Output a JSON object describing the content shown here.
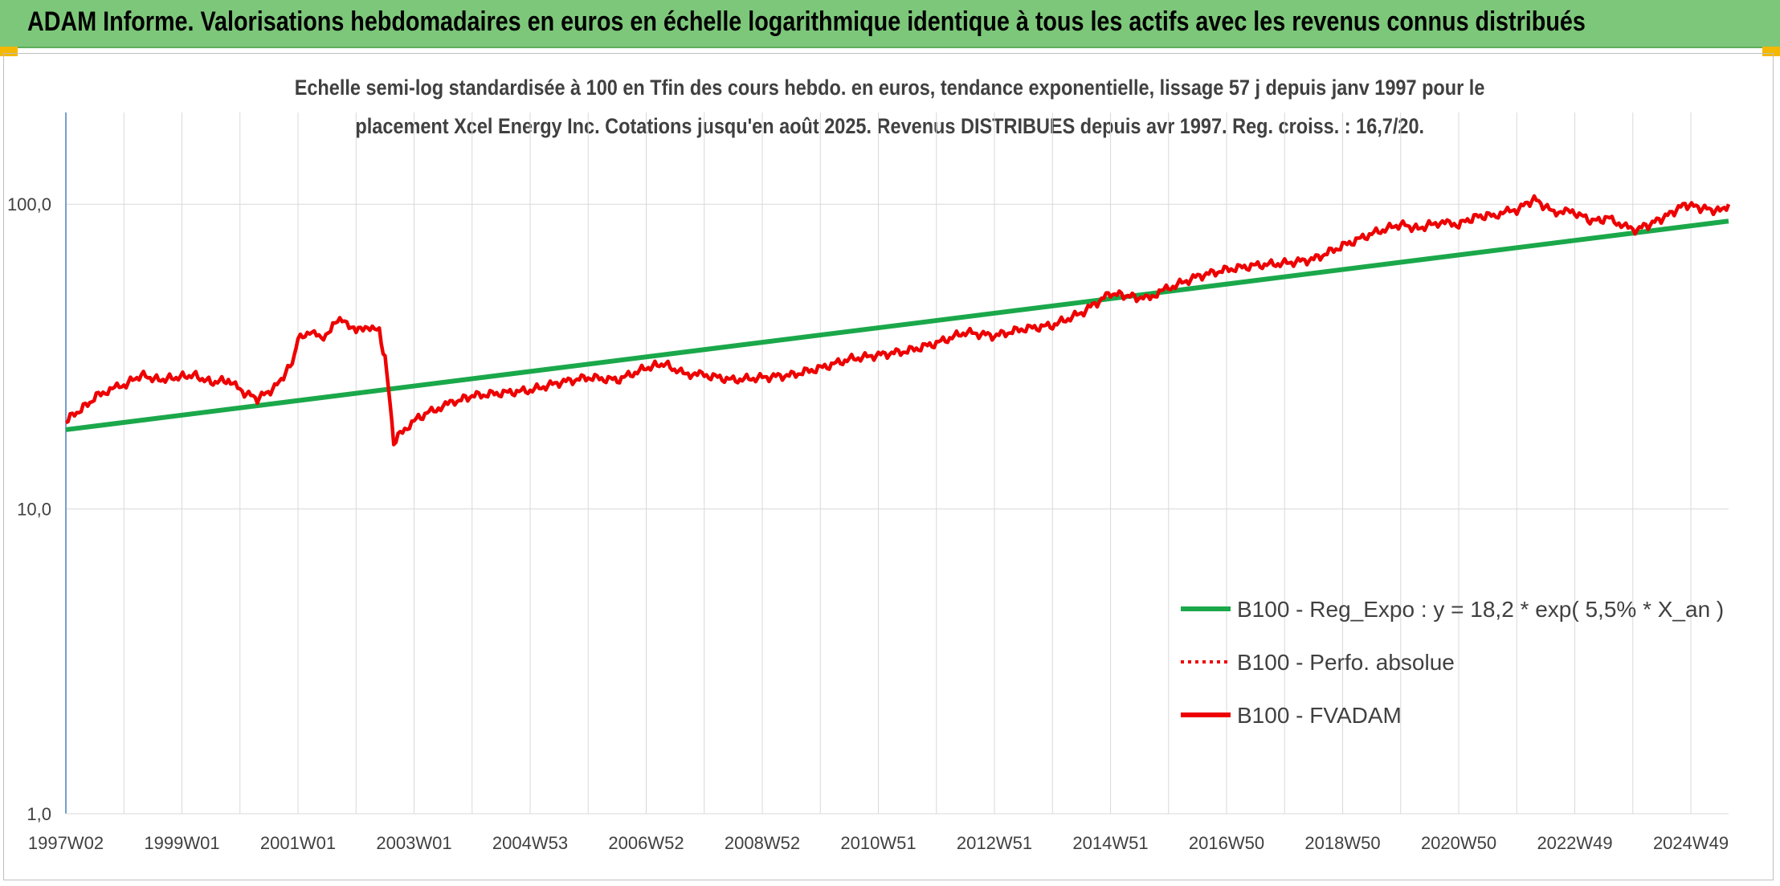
{
  "header": {
    "title": "ADAM Informe. Valorisations hebdomadaires en euros en échelle logarithmique identique à tous les actifs avec les revenus connus distribués"
  },
  "colors": {
    "header_bg": "#7dc77a",
    "accent_corner": "#f4b800",
    "trend": "#1aa84a",
    "price": "#ee0000"
  },
  "chart_data": {
    "type": "line",
    "subtitle_line1": "Echelle semi-log standardisée à 100 en Tfin des cours hebdo. en euros, tendance exponentielle, lissage 57 j depuis janv 1997 pour le",
    "subtitle_line2": "placement Xcel Energy Inc. Cotations jusqu'en août 2025. Revenus DISTRIBUES depuis avr 1997. Reg. croiss. : 16,7/20.",
    "y_scale": "log",
    "ylim": [
      1,
      200
    ],
    "y_ticks": [
      {
        "value": 1,
        "label": "1,0"
      },
      {
        "value": 10,
        "label": "10,0"
      },
      {
        "value": 100,
        "label": "100,0"
      }
    ],
    "xlim": [
      1997.0,
      2025.65
    ],
    "x_ticks": [
      {
        "value": 1997.0,
        "label": "1997W02"
      },
      {
        "value": 1999.0,
        "label": "1999W01"
      },
      {
        "value": 2001.0,
        "label": "2001W01"
      },
      {
        "value": 2003.0,
        "label": "2003W01"
      },
      {
        "value": 2005.0,
        "label": "2004W53"
      },
      {
        "value": 2007.0,
        "label": "2006W52"
      },
      {
        "value": 2009.0,
        "label": "2008W52"
      },
      {
        "value": 2011.0,
        "label": "2010W51"
      },
      {
        "value": 2013.0,
        "label": "2012W51"
      },
      {
        "value": 2015.0,
        "label": "2014W51"
      },
      {
        "value": 2017.0,
        "label": "2016W50"
      },
      {
        "value": 2019.0,
        "label": "2018W50"
      },
      {
        "value": 2021.0,
        "label": "2020W50"
      },
      {
        "value": 2023.0,
        "label": "2022W49"
      },
      {
        "value": 2025.0,
        "label": "2024W49"
      }
    ],
    "grid": "vertical and horizontal",
    "legend_position": "bottom-right",
    "series": [
      {
        "name": "B100 - Reg_Expo : y = 18,2 * exp( 5,5% *  X_an )",
        "style": "solid",
        "color": "#1aa84a",
        "x": [
          1997.0,
          2025.65
        ],
        "y": [
          18.2,
          88.0
        ]
      },
      {
        "name": "B100 - Perfo. absolue",
        "style": "dotted",
        "color": "#ee0000",
        "x": [],
        "y": []
      },
      {
        "name": "B100 - FVADAM",
        "style": "solid",
        "color": "#ee0000",
        "x": [
          1997.0,
          1997.3,
          1997.6,
          1998.0,
          1998.3,
          1998.6,
          1998.9,
          1999.2,
          1999.5,
          1999.8,
          2000.0,
          2000.3,
          2000.6,
          2000.9,
          2001.0,
          2001.2,
          2001.4,
          2001.6,
          2001.8,
          2002.0,
          2002.2,
          2002.4,
          2002.5,
          2002.55,
          2002.65,
          2002.8,
          2003.0,
          2003.3,
          2003.7,
          2004.0,
          2004.5,
          2005.0,
          2005.5,
          2006.0,
          2006.5,
          2007.0,
          2007.3,
          2007.6,
          2008.0,
          2008.5,
          2009.0,
          2009.5,
          2010.0,
          2010.5,
          2011.0,
          2011.5,
          2012.0,
          2012.5,
          2013.0,
          2013.5,
          2014.0,
          2014.5,
          2015.0,
          2015.3,
          2015.6,
          2016.0,
          2016.5,
          2017.0,
          2017.5,
          2018.0,
          2018.5,
          2019.0,
          2019.5,
          2020.0,
          2020.3,
          2020.6,
          2021.0,
          2021.3,
          2021.6,
          2022.0,
          2022.3,
          2022.6,
          2023.0,
          2023.3,
          2023.6,
          2024.0,
          2024.3,
          2024.6,
          2024.9,
          2025.2,
          2025.5,
          2025.65
        ],
        "y": [
          19.5,
          21.5,
          24.0,
          25.5,
          27.5,
          26.5,
          27.0,
          27.5,
          26.0,
          26.5,
          24.5,
          23.0,
          25.0,
          30.0,
          36.0,
          38.5,
          36.0,
          40.0,
          42.0,
          38.0,
          40.0,
          38.0,
          31.0,
          26.0,
          16.5,
          18.0,
          19.5,
          21.0,
          22.5,
          23.5,
          24.0,
          24.5,
          26.0,
          27.0,
          26.5,
          29.0,
          30.0,
          28.0,
          27.5,
          26.5,
          27.0,
          27.5,
          29.0,
          31.0,
          32.0,
          33.0,
          35.0,
          38.0,
          37.0,
          39.0,
          40.0,
          44.0,
          51.0,
          50.0,
          49.0,
          53.0,
          58.0,
          61.0,
          63.0,
          64.0,
          66.0,
          73.0,
          80.0,
          86.0,
          83.0,
          87.0,
          86.0,
          91.0,
          92.0,
          96.0,
          104.0,
          95.0,
          94.0,
          88.0,
          90.0,
          82.0,
          86.0,
          92.0,
          100.0,
          97.0,
          95.0,
          100.0
        ]
      }
    ]
  }
}
